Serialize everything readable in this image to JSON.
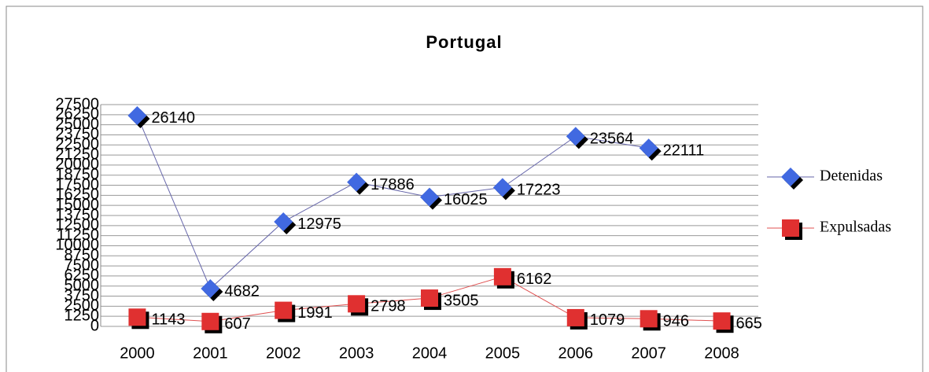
{
  "chart_data": {
    "type": "line",
    "title": "Portugal",
    "categories": [
      "2000",
      "2001",
      "2002",
      "2003",
      "2004",
      "2005",
      "2006",
      "2007",
      "2008"
    ],
    "series": [
      {
        "name": "Detenidas",
        "color": "#4169e1",
        "line_color": "#6666aa",
        "marker": "diamond",
        "values": [
          26140,
          4682,
          12975,
          17886,
          16025,
          17223,
          23564,
          22111,
          null
        ]
      },
      {
        "name": "Expulsadas",
        "color": "#e03030",
        "line_color": "#e05050",
        "marker": "square",
        "values": [
          1143,
          607,
          1991,
          2798,
          3505,
          6162,
          1079,
          946,
          665
        ]
      }
    ],
    "ylim": [
      0,
      27500
    ],
    "yticks": [
      0,
      1250,
      2500,
      3750,
      5000,
      6250,
      7500,
      8750,
      10000,
      11250,
      12500,
      13750,
      15000,
      16250,
      17500,
      18750,
      20000,
      21250,
      22500,
      23750,
      25000,
      26250,
      27500
    ],
    "grid": true,
    "legend": "right"
  }
}
